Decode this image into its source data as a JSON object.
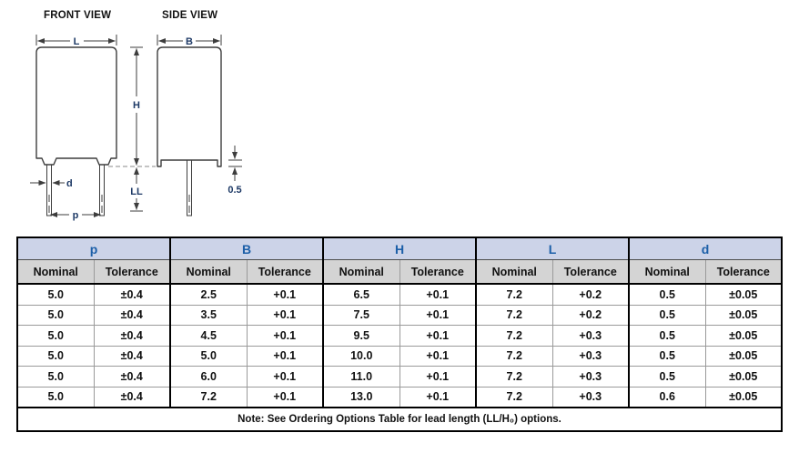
{
  "diagram": {
    "front_view": {
      "title": "FRONT VIEW",
      "dim_L": "L",
      "dim_H": "H",
      "dim_LL": "LL",
      "dim_d": "d",
      "dim_p": "p"
    },
    "side_view": {
      "title": "SIDE VIEW",
      "dim_B": "B",
      "dim_standoff": "0.5"
    }
  },
  "table": {
    "column_groups": [
      {
        "label": "p"
      },
      {
        "label": "B"
      },
      {
        "label": "H"
      },
      {
        "label": "L"
      },
      {
        "label": "d"
      }
    ],
    "sub_headers": [
      "Nominal",
      "Tolerance"
    ],
    "rows": [
      [
        "5.0",
        "±0.4",
        "2.5",
        "+0.1",
        "6.5",
        "+0.1",
        "7.2",
        "+0.2",
        "0.5",
        "±0.05"
      ],
      [
        "5.0",
        "±0.4",
        "3.5",
        "+0.1",
        "7.5",
        "+0.1",
        "7.2",
        "+0.2",
        "0.5",
        "±0.05"
      ],
      [
        "5.0",
        "±0.4",
        "4.5",
        "+0.1",
        "9.5",
        "+0.1",
        "7.2",
        "+0.3",
        "0.5",
        "±0.05"
      ],
      [
        "5.0",
        "±0.4",
        "5.0",
        "+0.1",
        "10.0",
        "+0.1",
        "7.2",
        "+0.3",
        "0.5",
        "±0.05"
      ],
      [
        "5.0",
        "±0.4",
        "6.0",
        "+0.1",
        "11.0",
        "+0.1",
        "7.2",
        "+0.3",
        "0.5",
        "±0.05"
      ],
      [
        "5.0",
        "±0.4",
        "7.2",
        "+0.1",
        "13.0",
        "+0.1",
        "7.2",
        "+0.3",
        "0.6",
        "±0.05"
      ]
    ],
    "note": "Note: See Ordering Options Table for lead length (LL/H₀) options.",
    "colors": {
      "group_header_bg": "#ccd3e8",
      "group_header_text": "#1c5fa8",
      "sub_header_bg": "#d4d4d4",
      "dim_label": "#1e3a66"
    }
  }
}
